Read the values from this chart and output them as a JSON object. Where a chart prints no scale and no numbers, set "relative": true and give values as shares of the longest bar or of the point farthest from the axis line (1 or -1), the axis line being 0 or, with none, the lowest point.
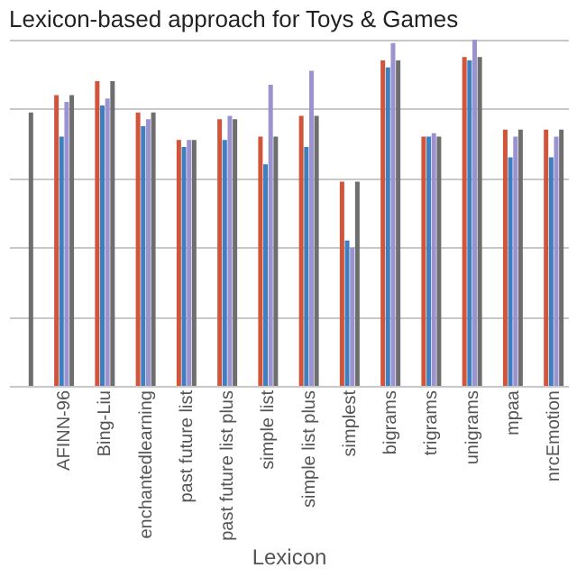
{
  "chart_data": {
    "type": "bar",
    "title": "Lexicon-based approach for Toys & Games",
    "xlabel": "Lexicon",
    "relative": true,
    "grid": "y",
    "categories": [
      null,
      "AFINN-96",
      "Bing-Liu",
      "enchantedlearning",
      "past future list",
      "past future list plus",
      "simple list",
      "simple list plus",
      "simplest",
      "bigrams",
      "trigrams",
      "unigrams",
      "mpaa",
      "nrcEmotion"
    ],
    "series": [
      {
        "color": "#d0553b",
        "values": [
          null,
          0.84,
          0.88,
          0.79,
          0.71,
          0.77,
          0.72,
          0.78,
          0.59,
          0.94,
          0.72,
          0.95,
          0.74,
          0.74
        ]
      },
      {
        "color": "#3f7fc0",
        "values": [
          null,
          0.72,
          0.81,
          0.75,
          0.69,
          0.71,
          0.64,
          0.69,
          0.42,
          0.92,
          0.72,
          0.94,
          0.66,
          0.66
        ]
      },
      {
        "color": "#9a93d0",
        "values": [
          null,
          0.82,
          0.83,
          0.77,
          0.71,
          0.78,
          0.87,
          0.91,
          0.4,
          0.99,
          0.73,
          1.0,
          0.72,
          0.72
        ]
      },
      {
        "color": "#6e6e6e",
        "values": [
          0.79,
          0.84,
          0.88,
          0.79,
          0.71,
          0.77,
          0.72,
          0.78,
          0.59,
          0.94,
          0.72,
          0.95,
          0.74,
          0.74
        ]
      }
    ]
  }
}
